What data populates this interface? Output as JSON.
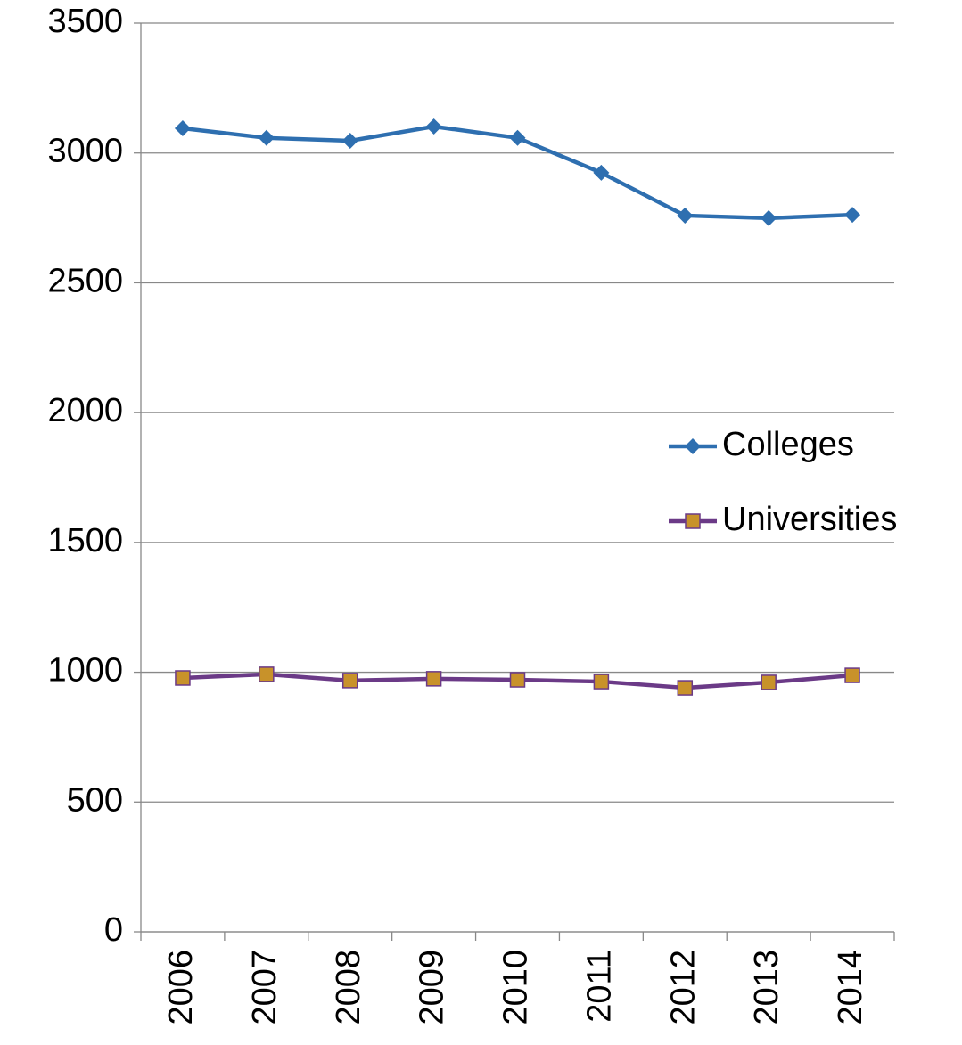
{
  "chart_data": {
    "type": "line",
    "categories": [
      "2006",
      "2007",
      "2008",
      "2009",
      "2010",
      "2011",
      "2012",
      "2013",
      "2014"
    ],
    "series": [
      {
        "name": "Colleges",
        "color": "#2e6fb0",
        "marker": "diamond",
        "values": [
          3095,
          3058,
          3047,
          3102,
          3058,
          2924,
          2759,
          2749,
          2762
        ]
      },
      {
        "name": "Universities",
        "color": "#6b3a87",
        "marker_fill": "#c8922a",
        "marker": "square",
        "values": [
          978,
          992,
          968,
          975,
          971,
          964,
          940,
          961,
          988
        ]
      }
    ],
    "ylim": [
      0,
      3500
    ],
    "yticks": [
      0,
      500,
      1000,
      1500,
      2000,
      2500,
      3000,
      3500
    ],
    "grid": true,
    "legend": "right"
  }
}
